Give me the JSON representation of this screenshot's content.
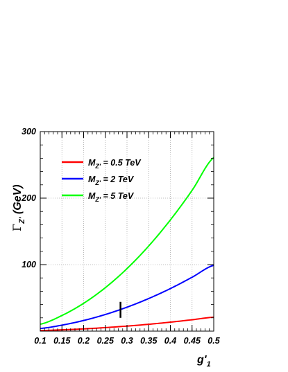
{
  "chart_data": {
    "type": "line",
    "ylabel": {
      "prefix": "Γ",
      "sub": "Z'",
      "suffix": " (GeV)"
    },
    "xlabel": {
      "main": "g'",
      "sub": "1"
    },
    "xlim": [
      0.1,
      0.5
    ],
    "ylim": [
      0,
      300
    ],
    "x_ticks": [
      "0.1",
      "0.15",
      "0.2",
      "0.25",
      "0.3",
      "0.35",
      "0.4",
      "0.45",
      "0.5"
    ],
    "y_ticks": [
      "100",
      "200",
      "300"
    ],
    "grid": true,
    "legend_position": "top-left",
    "x": [
      0.1,
      0.15,
      0.2,
      0.25,
      0.3,
      0.35,
      0.4,
      0.45,
      0.5
    ],
    "series": [
      {
        "name_main": "M",
        "name_sub": "Z'",
        "name_rest": " = 0.5 TeV",
        "color": "#ff0000",
        "values": [
          0.85,
          1.9,
          3.4,
          5.3,
          7.6,
          10.3,
          13.5,
          17.1,
          21.0
        ]
      },
      {
        "name_main": "M",
        "name_sub": "Z'",
        "name_rest": " = 2 TeV",
        "color": "#0000ff",
        "values": [
          4.0,
          9.0,
          16.0,
          25.0,
          36.0,
          49.0,
          64.0,
          81.0,
          99.0
        ]
      },
      {
        "name_main": "M",
        "name_sub": "Z'",
        "name_rest": " = 5 TeV",
        "color": "#00ff00",
        "values": [
          10.4,
          23.5,
          41.8,
          65.3,
          94.0,
          128.0,
          167.2,
          211.6,
          261.0
        ]
      }
    ],
    "marker": {
      "x": 0.285,
      "y_range": [
        20,
        44
      ],
      "color": "#000000"
    }
  }
}
